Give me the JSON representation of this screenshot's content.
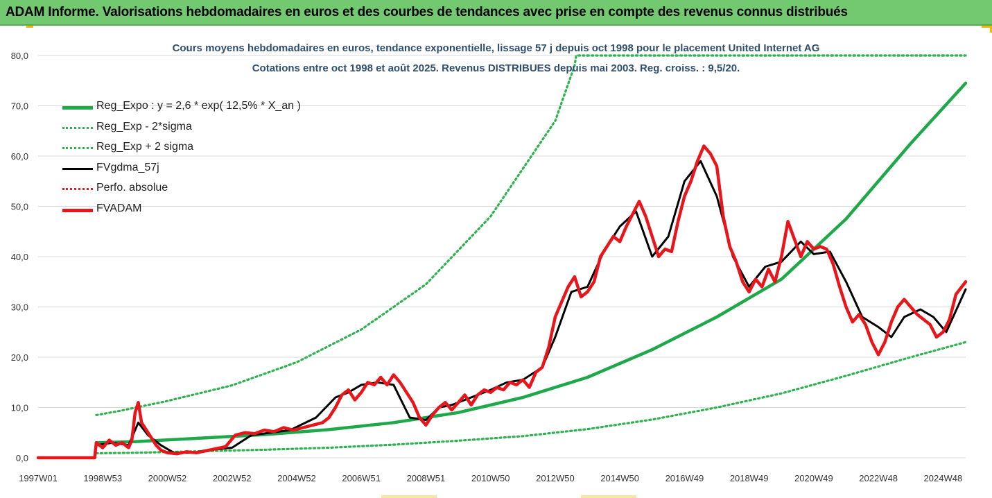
{
  "banner": {
    "title": "ADAM Informe. Valorisations hebdomadaires en euros et des courbes de tendances avec prise en compte des revenus connus distribués"
  },
  "chart_data": {
    "type": "line",
    "title": "Cours moyens hebdomadaires en euros, tendance exponentielle, lissage 57 j depuis oct 1998 pour le placement United Internet AG",
    "subtitle": "Cotations entre oct 1998 et août 2025.  Revenus DISTRIBUES depuis mai 2003. Reg. croiss. : 9,5/20.",
    "xlabel": "",
    "ylabel": "",
    "x_range": [
      1997.0,
      2025.7
    ],
    "ylim": [
      0,
      80
    ],
    "y_ticks": [
      "0,0",
      "10,0",
      "20,0",
      "30,0",
      "40,0",
      "50,0",
      "60,0",
      "70,0",
      "80,0"
    ],
    "x_ticks": [
      {
        "label": "1997W01",
        "x": 1997.0
      },
      {
        "label": "1998W53",
        "x": 1999.0
      },
      {
        "label": "2000W52",
        "x": 2001.0
      },
      {
        "label": "2002W52",
        "x": 2003.0
      },
      {
        "label": "2004W52",
        "x": 2005.0
      },
      {
        "label": "2006W51",
        "x": 2007.0
      },
      {
        "label": "2008W51",
        "x": 2009.0
      },
      {
        "label": "2010W50",
        "x": 2011.0
      },
      {
        "label": "2012W50",
        "x": 2013.0
      },
      {
        "label": "2014W50",
        "x": 2015.0
      },
      {
        "label": "2016W49",
        "x": 2017.0
      },
      {
        "label": "2018W49",
        "x": 2019.0
      },
      {
        "label": "2020W49",
        "x": 2021.0
      },
      {
        "label": "2022W48",
        "x": 2023.0
      },
      {
        "label": "2024W48",
        "x": 2025.0
      }
    ],
    "grid": "horizontal",
    "legend_position": "top-left",
    "series": [
      {
        "name": "Reg_Expo : y = 2,6 * exp( 12,5% *  X_an )",
        "color": "#1ea84a",
        "style": "solid-thick",
        "x": [
          1998.8,
          2000,
          2002,
          2004,
          2006,
          2008,
          2010,
          2012,
          2014,
          2016,
          2018,
          2020,
          2022,
          2024,
          2025.7
        ],
        "y": [
          3.0,
          3.2,
          3.9,
          4.6,
          5.6,
          7.0,
          9.0,
          12.0,
          16.0,
          21.5,
          28.0,
          35.5,
          47.5,
          62.5,
          74.5
        ]
      },
      {
        "name": "Reg_Exp - 2*sigma",
        "color": "#2db24f",
        "style": "dotted",
        "x": [
          1998.8,
          2000,
          2002,
          2004,
          2006,
          2008,
          2010,
          2012,
          2014,
          2016,
          2018,
          2020,
          2022,
          2024,
          2025.7
        ],
        "y": [
          0.9,
          1.0,
          1.3,
          1.6,
          2.0,
          2.6,
          3.4,
          4.3,
          5.7,
          7.6,
          10.0,
          12.8,
          16.3,
          20.0,
          23.0
        ]
      },
      {
        "name": "Reg_Exp + 2 sigma",
        "color": "#2db24f",
        "style": "dotted",
        "x": [
          1998.8,
          1999.5,
          2001,
          2003,
          2005,
          2007,
          2009,
          2011,
          2013,
          2013.6,
          2013.65,
          2025.7
        ],
        "y": [
          8.5,
          9.3,
          11.3,
          14.4,
          19.0,
          25.5,
          34.5,
          48.0,
          67.0,
          78.0,
          80.0,
          80.0
        ]
      },
      {
        "name": "FVgdma_57j",
        "color": "#000000",
        "style": "solid",
        "x": [
          1997.0,
          1998.75,
          1998.8,
          1999.3,
          1999.8,
          2000.1,
          2000.4,
          2000.8,
          2001.2,
          2001.8,
          2002.2,
          2003.0,
          2003.6,
          2004.2,
          2004.8,
          2005.6,
          2006.2,
          2006.6,
          2007.0,
          2007.5,
          2008.0,
          2008.5,
          2009.0,
          2009.4,
          2009.8,
          2010.2,
          2010.6,
          2011.0,
          2011.5,
          2012.0,
          2012.6,
          2013.0,
          2013.5,
          2014.0,
          2014.5,
          2015.0,
          2015.5,
          2016.0,
          2016.5,
          2017.0,
          2017.5,
          2018.0,
          2018.5,
          2019.0,
          2019.5,
          2020.0,
          2020.6,
          2021.0,
          2021.5,
          2022.0,
          2022.5,
          2023.0,
          2023.4,
          2023.8,
          2024.3,
          2024.7,
          2025.1,
          2025.7
        ],
        "y": [
          0.0,
          0.0,
          2.5,
          3.0,
          2.5,
          7.0,
          4.5,
          2.5,
          1.0,
          1.0,
          1.5,
          2.0,
          4.5,
          5.0,
          5.5,
          8.0,
          12.0,
          13.0,
          14.5,
          15.0,
          14.5,
          8.0,
          7.5,
          10.0,
          10.5,
          11.5,
          12.5,
          13.5,
          15.0,
          15.5,
          18.0,
          24.0,
          33.0,
          34.0,
          41.0,
          46.0,
          49.0,
          40.0,
          44.0,
          55.0,
          59.0,
          52.0,
          40.0,
          34.0,
          38.0,
          39.0,
          43.0,
          40.5,
          41.0,
          35.0,
          28.0,
          26.0,
          24.0,
          28.0,
          29.5,
          28.0,
          25.0,
          33.5
        ]
      },
      {
        "name": "Perfo. absolue",
        "color": "#e0201e",
        "style": "dotted",
        "x": [],
        "y": []
      },
      {
        "name": "FVADAM",
        "color": "#e8161b",
        "style": "solid-thick",
        "x": [
          1997.0,
          1998.75,
          1998.8,
          1999.0,
          1999.2,
          1999.4,
          1999.6,
          1999.8,
          1999.9,
          2000.0,
          2000.1,
          2000.2,
          2000.35,
          2000.5,
          2000.65,
          2000.8,
          2001.0,
          2001.3,
          2001.6,
          2001.9,
          2002.2,
          2002.5,
          2002.8,
          2003.1,
          2003.4,
          2003.7,
          2004.0,
          2004.3,
          2004.6,
          2004.9,
          2005.2,
          2005.5,
          2005.8,
          2006.0,
          2006.2,
          2006.4,
          2006.6,
          2006.8,
          2007.0,
          2007.2,
          2007.4,
          2007.6,
          2007.8,
          2008.0,
          2008.2,
          2008.4,
          2008.6,
          2008.8,
          2009.0,
          2009.2,
          2009.4,
          2009.6,
          2009.8,
          2010.0,
          2010.2,
          2010.4,
          2010.6,
          2010.8,
          2011.0,
          2011.2,
          2011.4,
          2011.6,
          2011.8,
          2012.0,
          2012.2,
          2012.4,
          2012.6,
          2012.8,
          2013.0,
          2013.2,
          2013.4,
          2013.6,
          2013.8,
          2014.0,
          2014.2,
          2014.4,
          2014.6,
          2014.8,
          2015.0,
          2015.2,
          2015.4,
          2015.6,
          2015.8,
          2016.0,
          2016.2,
          2016.4,
          2016.6,
          2016.8,
          2017.0,
          2017.2,
          2017.4,
          2017.6,
          2017.8,
          2018.0,
          2018.2,
          2018.4,
          2018.6,
          2018.8,
          2019.0,
          2019.2,
          2019.4,
          2019.6,
          2019.8,
          2020.0,
          2020.2,
          2020.4,
          2020.6,
          2020.8,
          2021.0,
          2021.2,
          2021.4,
          2021.6,
          2021.8,
          2022.0,
          2022.2,
          2022.4,
          2022.6,
          2022.8,
          2023.0,
          2023.2,
          2023.4,
          2023.6,
          2023.8,
          2024.0,
          2024.2,
          2024.4,
          2024.6,
          2024.8,
          2025.0,
          2025.2,
          2025.4,
          2025.7
        ],
        "y": [
          0.0,
          0.0,
          3.0,
          2.0,
          3.5,
          2.5,
          3.0,
          2.0,
          3.5,
          9.0,
          11.0,
          7.0,
          5.5,
          4.0,
          2.5,
          1.5,
          1.0,
          0.8,
          1.2,
          1.0,
          1.4,
          1.8,
          2.2,
          4.5,
          5.0,
          4.8,
          5.5,
          5.2,
          6.0,
          5.5,
          6.0,
          6.5,
          7.0,
          8.0,
          10.0,
          12.5,
          13.5,
          11.5,
          13.0,
          15.0,
          14.5,
          16.0,
          14.5,
          16.5,
          15.0,
          13.0,
          11.0,
          8.0,
          6.5,
          8.5,
          10.0,
          11.0,
          9.5,
          11.0,
          12.5,
          10.5,
          12.5,
          13.5,
          13.0,
          14.0,
          13.5,
          15.0,
          14.5,
          15.5,
          14.0,
          17.0,
          18.0,
          22.0,
          28.0,
          31.0,
          34.0,
          36.0,
          32.0,
          33.0,
          35.0,
          40.0,
          42.0,
          44.0,
          43.0,
          46.0,
          48.5,
          51.0,
          48.0,
          44.0,
          40.0,
          41.5,
          41.0,
          47.0,
          52.0,
          55.0,
          59.0,
          62.0,
          60.5,
          58.0,
          48.0,
          42.0,
          39.0,
          35.0,
          33.0,
          35.5,
          34.0,
          37.5,
          35.0,
          40.0,
          47.0,
          43.5,
          40.0,
          43.0,
          41.5,
          42.0,
          41.5,
          38.5,
          34.0,
          30.0,
          27.0,
          28.5,
          26.5,
          23.0,
          20.5,
          23.0,
          27.0,
          30.0,
          31.5,
          30.0,
          28.5,
          27.5,
          26.5,
          24.0,
          25.0,
          27.5,
          32.5,
          35.0
        ]
      }
    ]
  }
}
